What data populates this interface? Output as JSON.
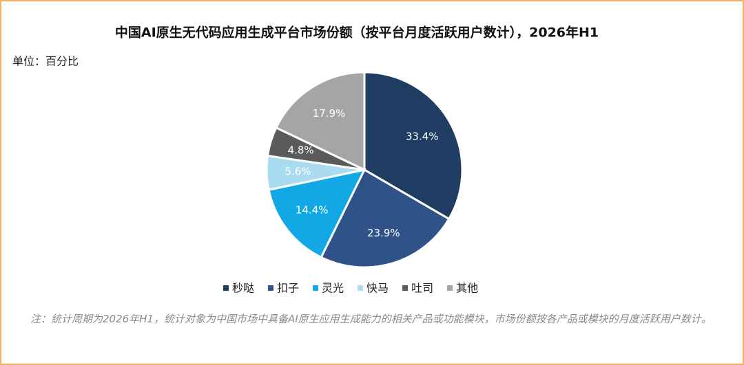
{
  "chart_data": {
    "type": "pie",
    "title": "中国AI原生无代码应用生成平台市场份额（按平台月度活跃用户数计），2026年H1",
    "unit_label": "单位：百分比",
    "categories": [
      "秒哒",
      "扣子",
      "灵光",
      "快马",
      "吐司",
      "其他"
    ],
    "values": [
      33.4,
      23.9,
      14.4,
      5.6,
      4.8,
      17.9
    ],
    "value_labels": [
      "33.4%",
      "23.9%",
      "14.4%",
      "5.6%",
      "4.8%",
      "17.9%"
    ],
    "colors": [
      "#1f3d63",
      "#2f5389",
      "#12a8e6",
      "#a9dcf1",
      "#5b5b5b",
      "#a5a5a5"
    ],
    "legend": "bottom",
    "note": "注：统计周期为2026年H1，统计对象为中国市场中具备AI原生应用生成能力的相关产品或功能模块，市场份额按各产品或模块的月度活跃用户数计。"
  }
}
